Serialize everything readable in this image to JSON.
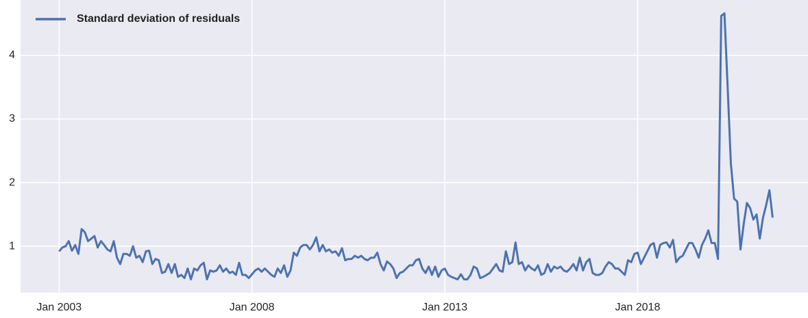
{
  "chart_data": {
    "type": "line",
    "x": [
      "2003-01",
      "2003-02",
      "2003-03",
      "2003-04",
      "2003-05",
      "2003-06",
      "2003-07",
      "2003-08",
      "2003-09",
      "2003-10",
      "2003-11",
      "2003-12",
      "2004-01",
      "2004-02",
      "2004-03",
      "2004-04",
      "2004-05",
      "2004-06",
      "2004-07",
      "2004-08",
      "2004-09",
      "2004-10",
      "2004-11",
      "2004-12",
      "2005-01",
      "2005-02",
      "2005-03",
      "2005-04",
      "2005-05",
      "2005-06",
      "2005-07",
      "2005-08",
      "2005-09",
      "2005-10",
      "2005-11",
      "2005-12",
      "2006-01",
      "2006-02",
      "2006-03",
      "2006-04",
      "2006-05",
      "2006-06",
      "2006-07",
      "2006-08",
      "2006-09",
      "2006-10",
      "2006-11",
      "2006-12",
      "2007-01",
      "2007-02",
      "2007-03",
      "2007-04",
      "2007-05",
      "2007-06",
      "2007-07",
      "2007-08",
      "2007-09",
      "2007-10",
      "2007-11",
      "2007-12",
      "2008-01",
      "2008-02",
      "2008-03",
      "2008-04",
      "2008-05",
      "2008-06",
      "2008-07",
      "2008-08",
      "2008-09",
      "2008-10",
      "2008-11",
      "2008-12",
      "2009-01",
      "2009-02",
      "2009-03",
      "2009-04",
      "2009-05",
      "2009-06",
      "2009-07",
      "2009-08",
      "2009-09",
      "2009-10",
      "2009-11",
      "2009-12",
      "2010-01",
      "2010-02",
      "2010-03",
      "2010-04",
      "2010-05",
      "2010-06",
      "2010-07",
      "2010-08",
      "2010-09",
      "2010-10",
      "2010-11",
      "2010-12",
      "2011-01",
      "2011-02",
      "2011-03",
      "2011-04",
      "2011-05",
      "2011-06",
      "2011-07",
      "2011-08",
      "2011-09",
      "2011-10",
      "2011-11",
      "2011-12",
      "2012-01",
      "2012-02",
      "2012-03",
      "2012-04",
      "2012-05",
      "2012-06",
      "2012-07",
      "2012-08",
      "2012-09",
      "2012-10",
      "2012-11",
      "2012-12",
      "2013-01",
      "2013-02",
      "2013-03",
      "2013-04",
      "2013-05",
      "2013-06",
      "2013-07",
      "2013-08",
      "2013-09",
      "2013-10",
      "2013-11",
      "2013-12",
      "2014-01",
      "2014-02",
      "2014-03",
      "2014-04",
      "2014-05",
      "2014-06",
      "2014-07",
      "2014-08",
      "2014-09",
      "2014-10",
      "2014-11",
      "2014-12",
      "2015-01",
      "2015-02",
      "2015-03",
      "2015-04",
      "2015-05",
      "2015-06",
      "2015-07",
      "2015-08",
      "2015-09",
      "2015-10",
      "2015-11",
      "2015-12",
      "2016-01",
      "2016-02",
      "2016-03",
      "2016-04",
      "2016-05",
      "2016-06",
      "2016-07",
      "2016-08",
      "2016-09",
      "2016-10",
      "2016-11",
      "2016-12",
      "2017-01",
      "2017-02",
      "2017-03",
      "2017-04",
      "2017-05",
      "2017-06",
      "2017-07",
      "2017-08",
      "2017-09",
      "2017-10",
      "2017-11",
      "2017-12",
      "2018-01",
      "2018-02",
      "2018-03",
      "2018-04",
      "2018-05",
      "2018-06",
      "2018-07",
      "2018-08",
      "2018-09",
      "2018-10",
      "2018-11",
      "2018-12",
      "2019-01",
      "2019-02",
      "2019-03",
      "2019-04",
      "2019-05",
      "2019-06",
      "2019-07",
      "2019-08",
      "2019-09",
      "2019-10",
      "2019-11",
      "2019-12",
      "2020-01",
      "2020-02",
      "2020-03",
      "2020-04",
      "2020-05",
      "2020-06",
      "2020-07",
      "2020-08",
      "2020-09",
      "2020-10",
      "2020-11",
      "2020-12",
      "2021-01",
      "2021-02",
      "2021-03",
      "2021-04",
      "2021-05",
      "2021-06",
      "2021-07"
    ],
    "series": [
      {
        "name": "Standard deviation of residuals",
        "color": "#4c72b0",
        "values": [
          0.92,
          0.98,
          1.0,
          1.08,
          0.93,
          1.02,
          0.88,
          1.27,
          1.22,
          1.08,
          1.12,
          1.16,
          0.98,
          1.08,
          1.02,
          0.95,
          0.92,
          1.08,
          0.82,
          0.72,
          0.88,
          0.88,
          0.85,
          1.0,
          0.82,
          0.85,
          0.75,
          0.92,
          0.93,
          0.72,
          0.8,
          0.78,
          0.58,
          0.6,
          0.72,
          0.58,
          0.72,
          0.52,
          0.55,
          0.5,
          0.65,
          0.48,
          0.65,
          0.62,
          0.7,
          0.74,
          0.48,
          0.62,
          0.6,
          0.62,
          0.7,
          0.6,
          0.65,
          0.58,
          0.6,
          0.55,
          0.74,
          0.55,
          0.55,
          0.5,
          0.56,
          0.62,
          0.65,
          0.6,
          0.65,
          0.6,
          0.55,
          0.52,
          0.65,
          0.58,
          0.7,
          0.52,
          0.62,
          0.9,
          0.85,
          0.98,
          1.02,
          1.02,
          0.95,
          1.02,
          1.14,
          0.92,
          1.02,
          0.92,
          0.95,
          0.9,
          0.92,
          0.85,
          0.97,
          0.78,
          0.8,
          0.8,
          0.85,
          0.82,
          0.85,
          0.8,
          0.78,
          0.82,
          0.82,
          0.9,
          0.72,
          0.62,
          0.76,
          0.72,
          0.65,
          0.5,
          0.58,
          0.6,
          0.65,
          0.7,
          0.7,
          0.78,
          0.8,
          0.65,
          0.58,
          0.68,
          0.55,
          0.68,
          0.52,
          0.62,
          0.65,
          0.55,
          0.52,
          0.5,
          0.48,
          0.56,
          0.48,
          0.48,
          0.55,
          0.68,
          0.65,
          0.5,
          0.52,
          0.55,
          0.58,
          0.65,
          0.72,
          0.62,
          0.6,
          0.92,
          0.72,
          0.75,
          1.06,
          0.72,
          0.75,
          0.62,
          0.7,
          0.65,
          0.62,
          0.7,
          0.55,
          0.58,
          0.72,
          0.6,
          0.68,
          0.65,
          0.68,
          0.62,
          0.6,
          0.65,
          0.72,
          0.62,
          0.82,
          0.62,
          0.75,
          0.8,
          0.58,
          0.55,
          0.55,
          0.58,
          0.68,
          0.75,
          0.72,
          0.65,
          0.65,
          0.6,
          0.55,
          0.78,
          0.75,
          0.88,
          0.9,
          0.72,
          0.82,
          0.92,
          1.02,
          1.05,
          0.82,
          1.02,
          1.05,
          1.06,
          0.98,
          1.1,
          0.75,
          0.82,
          0.85,
          0.95,
          1.05,
          1.05,
          0.95,
          0.82,
          1.02,
          1.12,
          1.25,
          1.05,
          1.05,
          0.8,
          4.62,
          4.66,
          3.5,
          2.3,
          1.75,
          1.7,
          0.95,
          1.35,
          1.68,
          1.6,
          1.42,
          1.5,
          1.12,
          1.45,
          1.65,
          1.88,
          1.45
        ]
      }
    ],
    "xlim": [
      "2002-01",
      "2022-06"
    ],
    "xticks": [
      {
        "value": "2003-01",
        "label": "Jan 2003"
      },
      {
        "value": "2008-01",
        "label": "Jan 2008"
      },
      {
        "value": "2013-01",
        "label": "Jan 2013"
      },
      {
        "value": "2018-01",
        "label": "Jan 2018"
      }
    ],
    "ylim": [
      0.27,
      4.87
    ],
    "yticks": [
      1,
      2,
      3,
      4
    ],
    "grid": true,
    "legend": "upper left"
  }
}
